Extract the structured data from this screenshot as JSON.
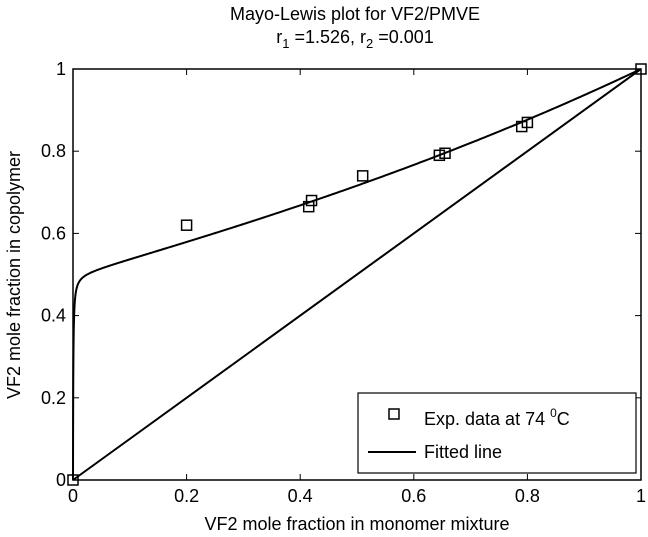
{
  "chart_data": {
    "type": "scatter",
    "title_line1": "Mayo-Lewis plot for VF2/PMVE",
    "title_line2": {
      "r1_base": "r",
      "r1_sub": "1",
      "r1_value": " =1.526, ",
      "r2_base": "r",
      "r2_sub": "2",
      "r2_value": " =0.001"
    },
    "xlabel": "VF2 mole fraction in monomer mixture",
    "ylabel": "VF2 mole fraction in copolymer",
    "xlim": [
      0,
      1
    ],
    "ylim": [
      0,
      1
    ],
    "x_ticks": [
      0,
      0.2,
      0.4,
      0.6,
      0.8,
      1
    ],
    "x_tick_labels": [
      "0",
      "0.2",
      "0.4",
      "0.6",
      "0.8",
      "1"
    ],
    "y_ticks": [
      0,
      0.2,
      0.4,
      0.6,
      0.8,
      1
    ],
    "y_tick_labels": [
      "0",
      "0.2",
      "0.4",
      "0.6",
      "0.8",
      "1"
    ],
    "grid": false,
    "legend_position": "bottom-right",
    "legend": {
      "exp_text": "Exp. data at 74 ",
      "exp_super": "0",
      "exp_unit": "C",
      "fit_text": "Fitted line"
    },
    "series": [
      {
        "name": "Exp. data at 74 0C",
        "type": "scatter",
        "marker": "square",
        "color": "#000000",
        "x": [
          0.0,
          0.2,
          0.415,
          0.42,
          0.51,
          0.645,
          0.655,
          0.79,
          0.8,
          1.0
        ],
        "y": [
          0.0,
          0.62,
          0.665,
          0.68,
          0.74,
          0.79,
          0.795,
          0.86,
          0.87,
          1.0
        ]
      },
      {
        "name": "Fitted line",
        "type": "line",
        "color": "#000000",
        "r1": 1.526,
        "r2": 0.001
      }
    ],
    "diagonal": {
      "x": [
        0,
        1
      ],
      "y": [
        0,
        1
      ],
      "color": "#000000"
    }
  }
}
